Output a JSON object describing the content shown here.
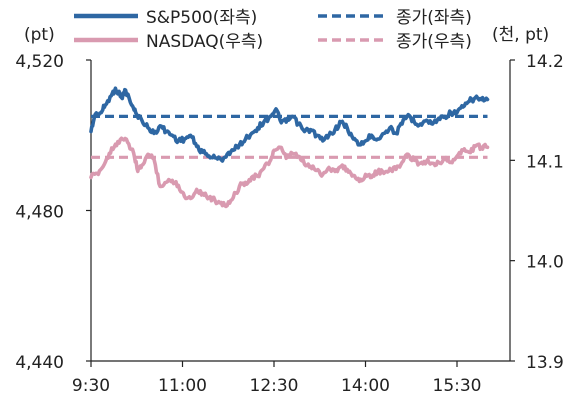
{
  "chart_data": {
    "type": "line",
    "x_ticks": [
      "9:30",
      "11:00",
      "12:30",
      "14:00",
      "15:30"
    ],
    "x_range": [
      "9:30",
      "16:00"
    ],
    "left_axis": {
      "unit": "(pt)",
      "ticks": [
        "4,520",
        "4,480",
        "4,440"
      ],
      "ylim": [
        4440,
        4520
      ]
    },
    "right_axis": {
      "unit": "(천, pt)",
      "ticks": [
        "14.2",
        "14.1",
        "14.0",
        "13.9"
      ],
      "ylim": [
        13.9,
        14.2
      ]
    },
    "grid": false,
    "legend_position": "top",
    "series": [
      {
        "name": "S&P500(좌측)",
        "axis": "left",
        "style": "solid",
        "color": "#2e67a3",
        "points": [
          [
            "9:30",
            4501.0
          ],
          [
            "9:34",
            4505.5
          ],
          [
            "9:40",
            4506.0
          ],
          [
            "9:44",
            4508.0
          ],
          [
            "9:50",
            4510.5
          ],
          [
            "9:54",
            4512.5
          ],
          [
            "10:00",
            4510.0
          ],
          [
            "10:04",
            4512.0
          ],
          [
            "10:10",
            4508.0
          ],
          [
            "10:14",
            4506.0
          ],
          [
            "10:20",
            4504.0
          ],
          [
            "10:26",
            4502.0
          ],
          [
            "10:32",
            4500.5
          ],
          [
            "10:38",
            4502.5
          ],
          [
            "10:44",
            4501.0
          ],
          [
            "10:50",
            4500.0
          ],
          [
            "10:56",
            4498.5
          ],
          [
            "11:02",
            4499.0
          ],
          [
            "11:08",
            4500.0
          ],
          [
            "11:14",
            4497.0
          ],
          [
            "11:20",
            4495.5
          ],
          [
            "11:26",
            4494.5
          ],
          [
            "11:32",
            4494.0
          ],
          [
            "11:38",
            4493.5
          ],
          [
            "11:44",
            4495.0
          ],
          [
            "11:50",
            4496.0
          ],
          [
            "11:56",
            4497.5
          ],
          [
            "12:02",
            4499.0
          ],
          [
            "12:08",
            4500.5
          ],
          [
            "12:14",
            4502.0
          ],
          [
            "12:20",
            4503.5
          ],
          [
            "12:26",
            4505.0
          ],
          [
            "12:32",
            4507.0
          ],
          [
            "12:36",
            4504.0
          ],
          [
            "12:42",
            4503.5
          ],
          [
            "12:48",
            4505.0
          ],
          [
            "12:54",
            4503.0
          ],
          [
            "13:00",
            4501.0
          ],
          [
            "13:06",
            4501.5
          ],
          [
            "13:12",
            4500.0
          ],
          [
            "13:18",
            4498.5
          ],
          [
            "13:24",
            4500.0
          ],
          [
            "13:30",
            4501.5
          ],
          [
            "13:36",
            4503.5
          ],
          [
            "13:42",
            4502.0
          ],
          [
            "13:48",
            4499.0
          ],
          [
            "13:54",
            4497.5
          ],
          [
            "14:00",
            4498.5
          ],
          [
            "14:06",
            4500.0
          ],
          [
            "14:12",
            4499.0
          ],
          [
            "14:18",
            4500.5
          ],
          [
            "14:24",
            4502.0
          ],
          [
            "14:30",
            4500.5
          ],
          [
            "14:36",
            4503.0
          ],
          [
            "14:42",
            4505.5
          ],
          [
            "14:48",
            4503.5
          ],
          [
            "14:54",
            4503.0
          ],
          [
            "15:00",
            4504.0
          ],
          [
            "15:06",
            4503.0
          ],
          [
            "15:12",
            4504.5
          ],
          [
            "15:18",
            4505.0
          ],
          [
            "15:24",
            4506.0
          ],
          [
            "15:30",
            4506.0
          ],
          [
            "15:36",
            4507.5
          ],
          [
            "15:42",
            4509.0
          ],
          [
            "15:48",
            4510.0
          ],
          [
            "15:54",
            4509.5
          ],
          [
            "16:00",
            4509.5
          ]
        ]
      },
      {
        "name": "NASDAQ(우측)",
        "axis": "right",
        "style": "solid",
        "color": "#d99ab0",
        "points": [
          [
            "9:30",
            14.083
          ],
          [
            "9:36",
            14.087
          ],
          [
            "9:42",
            14.094
          ],
          [
            "9:48",
            14.107
          ],
          [
            "9:54",
            14.116
          ],
          [
            "10:00",
            14.122
          ],
          [
            "10:06",
            14.118
          ],
          [
            "10:12",
            14.107
          ],
          [
            "10:16",
            14.089
          ],
          [
            "10:20",
            14.095
          ],
          [
            "10:26",
            14.106
          ],
          [
            "10:32",
            14.101
          ],
          [
            "10:38",
            14.074
          ],
          [
            "10:44",
            14.078
          ],
          [
            "10:50",
            14.08
          ],
          [
            "10:56",
            14.075
          ],
          [
            "11:02",
            14.064
          ],
          [
            "11:08",
            14.062
          ],
          [
            "11:14",
            14.071
          ],
          [
            "11:20",
            14.067
          ],
          [
            "11:26",
            14.063
          ],
          [
            "11:32",
            14.06
          ],
          [
            "11:38",
            14.058
          ],
          [
            "11:44",
            14.055
          ],
          [
            "11:50",
            14.063
          ],
          [
            "11:56",
            14.074
          ],
          [
            "12:02",
            14.078
          ],
          [
            "12:08",
            14.083
          ],
          [
            "12:14",
            14.084
          ],
          [
            "12:20",
            14.092
          ],
          [
            "12:26",
            14.099
          ],
          [
            "12:30",
            14.11
          ],
          [
            "12:36",
            14.113
          ],
          [
            "12:42",
            14.102
          ],
          [
            "12:48",
            14.107
          ],
          [
            "12:54",
            14.104
          ],
          [
            "13:00",
            14.096
          ],
          [
            "13:06",
            14.094
          ],
          [
            "13:12",
            14.09
          ],
          [
            "13:18",
            14.086
          ],
          [
            "13:24",
            14.093
          ],
          [
            "13:30",
            14.089
          ],
          [
            "13:36",
            14.094
          ],
          [
            "13:42",
            14.091
          ],
          [
            "13:48",
            14.085
          ],
          [
            "13:54",
            14.079
          ],
          [
            "14:00",
            14.086
          ],
          [
            "14:06",
            14.083
          ],
          [
            "14:12",
            14.089
          ],
          [
            "14:18",
            14.087
          ],
          [
            "14:24",
            14.092
          ],
          [
            "14:30",
            14.091
          ],
          [
            "14:36",
            14.098
          ],
          [
            "14:42",
            14.106
          ],
          [
            "14:48",
            14.1
          ],
          [
            "14:54",
            14.097
          ],
          [
            "15:00",
            14.099
          ],
          [
            "15:06",
            14.097
          ],
          [
            "15:12",
            14.098
          ],
          [
            "15:18",
            14.101
          ],
          [
            "15:24",
            14.098
          ],
          [
            "15:30",
            14.104
          ],
          [
            "15:36",
            14.11
          ],
          [
            "15:42",
            14.108
          ],
          [
            "15:48",
            14.114
          ],
          [
            "15:54",
            14.113
          ],
          [
            "16:00",
            14.113
          ]
        ]
      },
      {
        "name": "종가(좌측)",
        "axis": "left",
        "style": "dashed",
        "color": "#2e67a3",
        "points": [
          [
            "9:30",
            4505.0
          ],
          [
            "16:00",
            4505.0
          ]
        ]
      },
      {
        "name": "종가(우측)",
        "axis": "right",
        "style": "dashed",
        "color": "#d99ab0",
        "points": [
          [
            "9:30",
            14.103
          ],
          [
            "16:00",
            14.103
          ]
        ]
      }
    ]
  }
}
